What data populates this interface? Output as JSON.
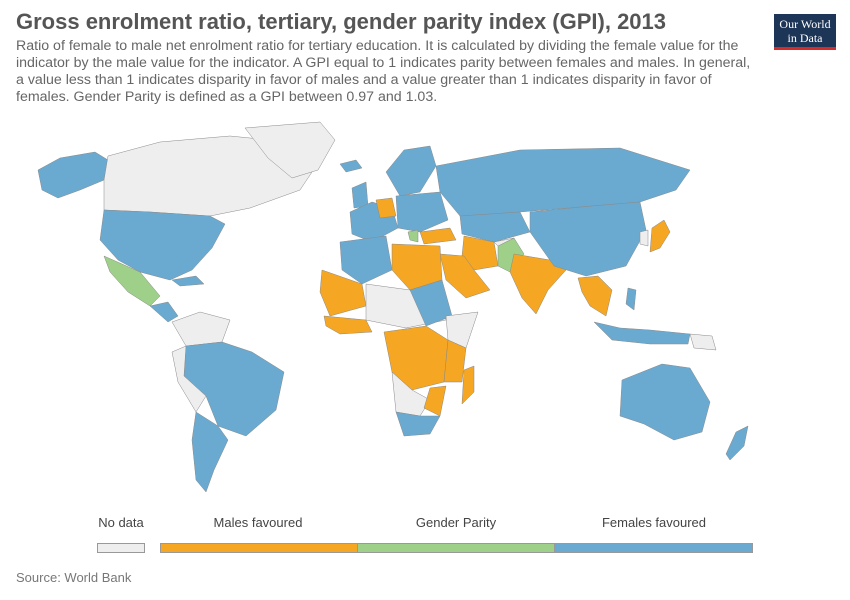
{
  "header": {
    "title": "Gross enrolment ratio, tertiary, gender parity index (GPI), 2013",
    "subtitle": "Ratio of female to male net enrolment ratio for tertiary education. It is calculated by dividing the female value for the indicator by the male value for the indicator. A GPI equal to 1 indicates parity between females and males. In general, a value less than 1 indicates disparity in favor of males and a value greater than 1 indicates disparity in favor of females. Gender Parity is defined as a GPI between 0.97 and 1.03.",
    "logo_line1": "Our World",
    "logo_line2": "in Data"
  },
  "colors": {
    "no_data": "#eeeeee",
    "males_favoured": "#f5a623",
    "gender_parity": "#9fd089",
    "females_favoured": "#6aaad1"
  },
  "legend": {
    "items": [
      {
        "key": "no_data",
        "label": "No data"
      },
      {
        "key": "males_favoured",
        "label": "Males favoured"
      },
      {
        "key": "gender_parity",
        "label": "Gender Parity"
      },
      {
        "key": "females_favoured",
        "label": "Females favoured"
      }
    ]
  },
  "footer": {
    "source": "Source: World Bank"
  }
}
